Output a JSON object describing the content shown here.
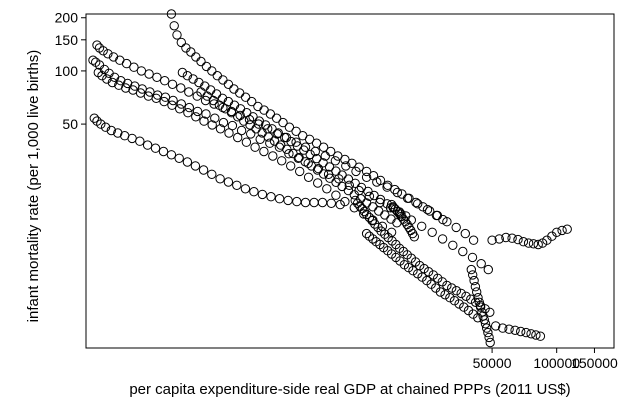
{
  "chart_data": {
    "type": "scatter",
    "title": "",
    "xlabel": "per capita expenditure-side real GDP at chained PPPs (2011 US$)",
    "ylabel": "infant mortality rate (per 1,000 live births)",
    "x_scale": "log",
    "y_scale": "log",
    "xlim": [
      640,
      185000
    ],
    "ylim": [
      2.7,
      210
    ],
    "x_ticks": [
      50000,
      100000,
      150000
    ],
    "x_tick_labels": [
      "50000",
      "100000",
      "150000"
    ],
    "y_ticks": [
      50,
      100,
      150,
      200
    ],
    "y_tick_labels": [
      "50",
      "100",
      "150",
      "200"
    ],
    "grid": false,
    "legend": "none",
    "marker": "hollow circle",
    "series": [
      {
        "x": [
          690,
          710,
          740,
          780,
          820,
          870,
          930,
          1000,
          1080,
          1170,
          1270,
          1380,
          1500,
          1630,
          1780,
          1940,
          2120,
          2320,
          2550,
          2800,
          3080,
          3400,
          3750,
          4150,
          4600,
          5100,
          5650,
          6250,
          6950,
          7750,
          8650,
          9650,
          10800,
          12000,
          13400,
          15000,
          16800,
          18800,
          21000,
          23500,
          26300,
          29400,
          32800,
          36500,
          40500,
          44500,
          48000
        ],
        "y": [
          115,
          112,
          108,
          102,
          97,
          92,
          88,
          85,
          82,
          79,
          76,
          73,
          71,
          68,
          65,
          62,
          59,
          57,
          54,
          51,
          49,
          46,
          44,
          41,
          39,
          37,
          34,
          32,
          30,
          28,
          26,
          24.5,
          22.5,
          21,
          19.5,
          18,
          16.8,
          15.5,
          14.3,
          13.2,
          12.2,
          11.2,
          10.3,
          9.5,
          8.8,
          8.1,
          7.5
        ]
      },
      {
        "x": [
          720,
          740,
          770,
          810,
          860,
          920,
          990,
          1070,
          1160,
          1260,
          1370,
          1490,
          1620,
          1770,
          1930,
          2110,
          2310,
          2530,
          2780,
          3050,
          3350,
          3700,
          4080,
          4500,
          4980,
          5500,
          6100,
          6750,
          7500,
          8350,
          9300,
          10400,
          11600,
          13000,
          14500,
          16200,
          18100,
          20200,
          22500,
          25000,
          27800,
          30800,
          34000,
          37500,
          41000
        ],
        "y": [
          140,
          135,
          130,
          125,
          120,
          115,
          110,
          105,
          100,
          96,
          92,
          88,
          84,
          80,
          76,
          72,
          68,
          65,
          62,
          59,
          56,
          53,
          50,
          47,
          44,
          42,
          39.5,
          37,
          35,
          33,
          31,
          29,
          27,
          25,
          23.5,
          22,
          20.5,
          19,
          17.7,
          16.4,
          15.2,
          14,
          13,
          12,
          11
        ]
      },
      {
        "x": [
          730,
          760,
          800,
          850,
          910,
          980,
          1060,
          1150,
          1250,
          1360,
          1480,
          1610,
          1750,
          1910,
          2080,
          2270,
          2480,
          2710,
          2970,
          3260,
          3580,
          3930,
          4320,
          4750,
          5230,
          5760,
          6340,
          6980,
          7690,
          8480,
          9350,
          10300,
          11400,
          12600,
          13900,
          15400,
          17000
        ],
        "y": [
          98,
          94,
          90,
          86,
          83,
          80,
          78,
          75,
          72,
          70,
          67,
          64,
          61,
          58,
          55,
          52,
          49.5,
          47,
          44.5,
          42,
          39.5,
          37,
          35,
          33,
          31,
          29,
          27,
          25,
          23.2,
          21.5,
          19.8,
          18.2,
          16.8,
          15.5,
          14.3,
          13.2,
          12.2
        ]
      },
      {
        "x": [
          700,
          720,
          750,
          790,
          840,
          900,
          970,
          1050,
          1140,
          1240,
          1350,
          1470,
          1600,
          1740,
          1900,
          2070,
          2260,
          2470,
          2700,
          2950,
          3230,
          3540,
          3880,
          4250,
          4660,
          5110,
          5600,
          6150,
          6750,
          7400,
          8100,
          8900,
          9800
        ],
        "y": [
          54,
          52,
          50,
          48,
          46,
          44.5,
          43,
          41.5,
          40,
          38,
          36.5,
          35,
          33.5,
          32,
          30.5,
          29,
          27.5,
          26,
          24.5,
          23.5,
          22.5,
          21.5,
          20.7,
          20,
          19.4,
          18.9,
          18.5,
          18.2,
          18,
          18,
          18,
          17.8,
          17.5
        ]
      },
      {
        "x": [
          1600,
          1650,
          1700,
          1780,
          1870,
          1970,
          2080,
          2200,
          2330,
          2470,
          2620,
          2780,
          2950,
          3130,
          3330,
          3550,
          3790,
          4050,
          4330,
          4630,
          4950,
          5300,
          5680,
          6100,
          6550,
          7050,
          7600,
          8200,
          8850,
          9550,
          10300,
          11100,
          12000,
          13000,
          14000,
          15100,
          16300,
          17600,
          19000,
          20500,
          22100,
          23800,
          25600,
          27500,
          29500
        ],
        "y": [
          210,
          180,
          160,
          145,
          135,
          128,
          120,
          113,
          106,
          100,
          94,
          89,
          84,
          79,
          75,
          71,
          67,
          63,
          60,
          57,
          54,
          51,
          48,
          45.5,
          43,
          41,
          39,
          37,
          35,
          33,
          31.5,
          30,
          28.5,
          27,
          25.5,
          24,
          22.5,
          21.3,
          20.1,
          19,
          18,
          17,
          16.1,
          15.2,
          14.4
        ]
      },
      {
        "x": [
          1800,
          1900,
          2020,
          2150,
          2290,
          2440,
          2600,
          2770,
          2950,
          3150,
          3360,
          3590,
          3840,
          4110,
          4400,
          4710,
          5040,
          5400,
          5780,
          6190,
          6630,
          7100,
          7610,
          8150,
          8730,
          9350,
          10000,
          10700,
          11500,
          12300,
          13200,
          14100,
          15100,
          16200,
          17300,
          18500,
          19800
        ],
        "y": [
          98,
          94,
          90,
          86,
          82,
          78,
          74,
          70,
          67,
          64,
          61,
          58,
          55,
          52,
          49.5,
          47,
          44.5,
          42,
          39.8,
          37.6,
          35.6,
          33.7,
          31.9,
          30.2,
          28.6,
          27.1,
          25.7,
          24.4,
          23.1,
          21.9,
          20.8,
          19.7,
          18.7,
          17.7,
          16.8,
          15.9,
          15.1
        ]
      },
      {
        "x": [
          2200,
          2350,
          2510,
          2680,
          2860,
          3050,
          3260,
          3480,
          3720,
          3970,
          4240,
          4530,
          4840,
          5170,
          5520,
          5900,
          6300,
          6730,
          7190,
          7680,
          8200,
          8760,
          9360,
          10000,
          10700,
          11400,
          12200,
          13000,
          13900,
          14800,
          15800,
          16900,
          18000
        ],
        "y": [
          76,
          72,
          68,
          64,
          61,
          58,
          55,
          52,
          49.5,
          47,
          44.6,
          42.3,
          40.1,
          38,
          36,
          34.1,
          32.3,
          30.6,
          29,
          27.5,
          26.1,
          24.7,
          23.4,
          22.2,
          21,
          19.9,
          18.9,
          17.9,
          17,
          16.1,
          15.3,
          14.5,
          13.8
        ]
      },
      {
        "x": [
          11500,
          11800,
          12100,
          12400,
          12700,
          13000,
          13400,
          13800,
          14200,
          14700,
          15200,
          15800,
          16400,
          17100,
          17800,
          18500,
          19300,
          20100,
          21000,
          22000,
          23000,
          24100,
          25300,
          26600,
          27900,
          29300,
          30800,
          32400,
          34100,
          35900,
          37800,
          39800,
          41900,
          44100,
          46400,
          48800
        ],
        "y": [
          18.5,
          17.8,
          17.2,
          16.6,
          16,
          15.4,
          14.8,
          14.2,
          13.6,
          13,
          12.4,
          11.9,
          11.4,
          10.9,
          10.4,
          9.9,
          9.5,
          9.1,
          8.7,
          8.3,
          7.9,
          7.6,
          7.3,
          7,
          6.7,
          6.4,
          6.1,
          5.9,
          5.7,
          5.5,
          5.3,
          5.1,
          4.9,
          4.7,
          4.5,
          4.3
        ]
      },
      {
        "x": [
          13000,
          13400,
          13900,
          14400,
          15000,
          15600,
          16300,
          17000,
          17800,
          18600,
          19500,
          20400,
          21400,
          22500,
          23600,
          24800,
          26000,
          27300,
          28700,
          30200,
          31800,
          33400,
          35100,
          36900,
          38800,
          40800,
          42900
        ],
        "y": [
          12,
          11.6,
          11.2,
          10.8,
          10.4,
          10,
          9.6,
          9.2,
          8.8,
          8.4,
          8,
          7.7,
          7.4,
          7.1,
          6.8,
          6.5,
          6.2,
          5.9,
          5.6,
          5.4,
          5.2,
          5,
          4.8,
          4.6,
          4.4,
          4.2,
          4
        ]
      },
      {
        "x": [
          17000,
          17300,
          17700,
          18100,
          18500,
          18900,
          19300,
          19700,
          20100,
          20500,
          20900,
          21300,
          21700
        ],
        "y": [
          17.5,
          17,
          16.5,
          16,
          15.5,
          15,
          14.5,
          14,
          13.5,
          13,
          12.5,
          12,
          11.5
        ]
      },
      {
        "x": [
          40000,
          40600,
          41200,
          41800,
          42400,
          43000,
          43600,
          44200,
          44800,
          45400,
          46000,
          46600,
          47200,
          47800,
          48400,
          49000
        ],
        "y": [
          7.5,
          7,
          6.5,
          6,
          5.6,
          5.2,
          4.9,
          4.6,
          4.3,
          4.1,
          3.9,
          3.7,
          3.5,
          3.3,
          3.1,
          2.9
        ]
      },
      {
        "x": [
          50000,
          54000,
          58000,
          62000,
          66000,
          70000,
          74000,
          78000,
          82000,
          86000,
          90000,
          95000,
          100000,
          106000,
          112000
        ],
        "y": [
          11,
          11.2,
          11.4,
          11.3,
          11.1,
          10.8,
          10.6,
          10.5,
          10.4,
          10.6,
          11,
          11.6,
          12.2,
          12.5,
          12.7
        ]
      },
      {
        "x": [
          52000,
          56000,
          60000,
          64000,
          68000,
          72000,
          76000,
          80000,
          84000
        ],
        "y": [
          3.6,
          3.5,
          3.45,
          3.4,
          3.35,
          3.3,
          3.25,
          3.2,
          3.15
        ]
      }
    ]
  }
}
